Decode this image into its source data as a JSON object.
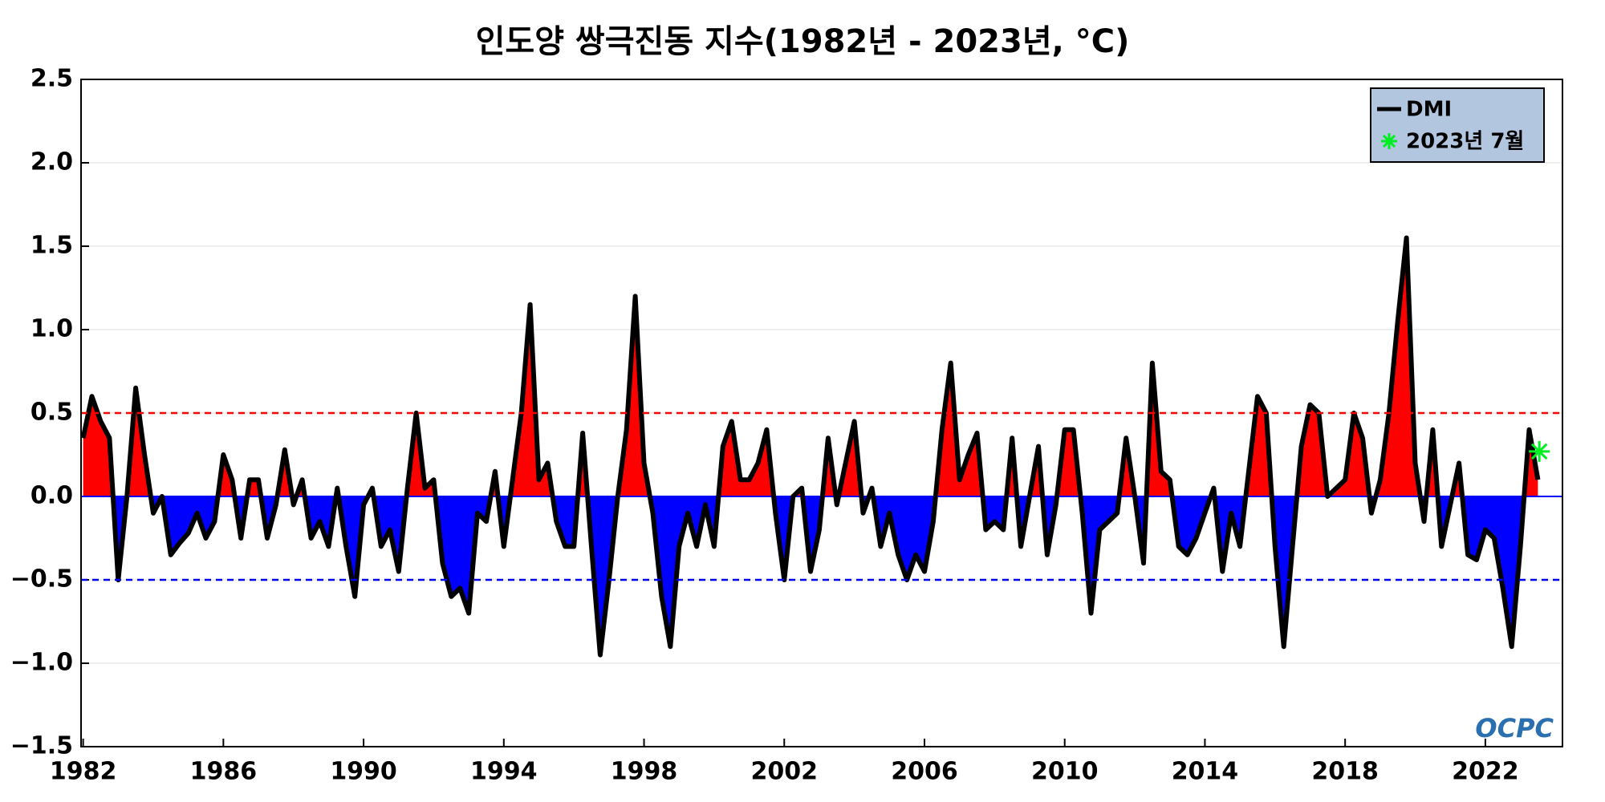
{
  "chart_data": {
    "type": "line",
    "title": "인도양 쌍극진동 지수(1982년 - 2023년, °C)",
    "x": [
      1982,
      1982.25,
      1982.5,
      1982.75,
      1983,
      1983.25,
      1983.5,
      1983.75,
      1984,
      1984.25,
      1984.5,
      1984.75,
      1985,
      1985.25,
      1985.5,
      1985.75,
      1986,
      1986.25,
      1986.5,
      1986.75,
      1987,
      1987.25,
      1987.5,
      1987.75,
      1988,
      1988.25,
      1988.5,
      1988.75,
      1989,
      1989.25,
      1989.5,
      1989.75,
      1990,
      1990.25,
      1990.5,
      1990.75,
      1991,
      1991.25,
      1991.5,
      1991.75,
      1992,
      1992.25,
      1992.5,
      1992.75,
      1993,
      1993.25,
      1993.5,
      1993.75,
      1994,
      1994.25,
      1994.5,
      1994.75,
      1995,
      1995.25,
      1995.5,
      1995.75,
      1996,
      1996.25,
      1996.5,
      1996.75,
      1997,
      1997.25,
      1997.5,
      1997.75,
      1998,
      1998.25,
      1998.5,
      1998.75,
      1999,
      1999.25,
      1999.5,
      1999.75,
      2000,
      2000.25,
      2000.5,
      2000.75,
      2001,
      2001.25,
      2001.5,
      2001.75,
      2002,
      2002.25,
      2002.5,
      2002.75,
      2003,
      2003.25,
      2003.5,
      2003.75,
      2004,
      2004.25,
      2004.5,
      2004.75,
      2005,
      2005.25,
      2005.5,
      2005.75,
      2006,
      2006.25,
      2006.5,
      2006.75,
      2007,
      2007.25,
      2007.5,
      2007.75,
      2008,
      2008.25,
      2008.5,
      2008.75,
      2009,
      2009.25,
      2009.5,
      2009.75,
      2010,
      2010.25,
      2010.5,
      2010.75,
      2011,
      2011.25,
      2011.5,
      2011.75,
      2012,
      2012.25,
      2012.5,
      2012.75,
      2013,
      2013.25,
      2013.5,
      2013.75,
      2014,
      2014.25,
      2014.5,
      2014.75,
      2015,
      2015.25,
      2015.5,
      2015.75,
      2016,
      2016.25,
      2016.5,
      2016.75,
      2017,
      2017.25,
      2017.5,
      2017.75,
      2018,
      2018.25,
      2018.5,
      2018.75,
      2019,
      2019.25,
      2019.5,
      2019.75,
      2020,
      2020.25,
      2020.5,
      2020.75,
      2021,
      2021.25,
      2021.5,
      2021.75,
      2022,
      2022.25,
      2022.5,
      2022.75,
      2023,
      2023.25,
      2023.5
    ],
    "series": [
      {
        "name": "DMI",
        "color": "#000000",
        "values": [
          0.35,
          0.6,
          0.45,
          0.35,
          -0.5,
          0.0,
          0.65,
          0.25,
          -0.1,
          0.0,
          -0.35,
          -0.28,
          -0.22,
          -0.1,
          -0.25,
          -0.15,
          0.25,
          0.1,
          -0.25,
          0.1,
          0.1,
          -0.25,
          -0.05,
          0.28,
          -0.05,
          0.1,
          -0.25,
          -0.15,
          -0.3,
          0.05,
          -0.3,
          -0.6,
          -0.05,
          0.05,
          -0.3,
          -0.2,
          -0.45,
          0.05,
          0.5,
          0.05,
          0.1,
          -0.4,
          -0.6,
          -0.55,
          -0.7,
          -0.1,
          -0.15,
          0.15,
          -0.3,
          0.1,
          0.5,
          1.15,
          0.1,
          0.2,
          -0.15,
          -0.3,
          -0.3,
          0.38,
          -0.3,
          -0.95,
          -0.5,
          0.0,
          0.4,
          1.2,
          0.2,
          -0.1,
          -0.6,
          -0.9,
          -0.3,
          -0.1,
          -0.3,
          -0.05,
          -0.3,
          0.3,
          0.45,
          0.1,
          0.1,
          0.2,
          0.4,
          -0.1,
          -0.5,
          0.0,
          0.05,
          -0.45,
          -0.2,
          0.35,
          -0.05,
          0.2,
          0.45,
          -0.1,
          0.05,
          -0.3,
          -0.1,
          -0.35,
          -0.5,
          -0.35,
          -0.45,
          -0.15,
          0.4,
          0.8,
          0.1,
          0.25,
          0.38,
          -0.2,
          -0.15,
          -0.2,
          0.35,
          -0.3,
          0.0,
          0.3,
          -0.35,
          -0.05,
          0.4,
          0.4,
          -0.1,
          -0.7,
          -0.2,
          -0.15,
          -0.1,
          0.35,
          0.0,
          -0.4,
          0.8,
          0.15,
          0.1,
          -0.3,
          -0.35,
          -0.25,
          -0.1,
          0.05,
          -0.45,
          -0.1,
          -0.3,
          0.15,
          0.6,
          0.5,
          -0.3,
          -0.9,
          -0.3,
          0.3,
          0.55,
          0.5,
          0.0,
          0.05,
          0.1,
          0.5,
          0.35,
          -0.1,
          0.1,
          0.5,
          1.05,
          1.55,
          0.2,
          -0.15,
          0.4,
          -0.3,
          -0.05,
          0.2,
          -0.35,
          -0.38,
          -0.2,
          -0.25,
          -0.55,
          -0.9,
          -0.3,
          0.4,
          0.1
        ]
      }
    ],
    "positive_color": "#ff0000",
    "negative_color": "#0000ff",
    "marker": {
      "name": "2023년 7월",
      "color": "#00ee22",
      "x": 2023.54,
      "value": 0.27
    },
    "thresholds": [
      {
        "value": 0.5,
        "color": "#ff0000"
      },
      {
        "value": -0.5,
        "color": "#0000ff"
      }
    ],
    "xlim": [
      1981.94,
      2024.2
    ],
    "ylim": [
      -1.5,
      2.5
    ],
    "xticks": [
      1982,
      1986,
      1990,
      1994,
      1998,
      2002,
      2006,
      2010,
      2014,
      2018,
      2022
    ],
    "yticks": [
      {
        "value": -1.5,
        "label": "−1.5"
      },
      {
        "value": -1,
        "label": "−1.0"
      },
      {
        "value": -0.5,
        "label": "−0.5"
      },
      {
        "value": 0,
        "label": "0.0"
      },
      0.5,
      {
        "value": 1,
        "label": "1.0"
      },
      1.5,
      {
        "value": 2,
        "label": "2.0"
      },
      2.5
    ],
    "grid": true,
    "legend": "upper right",
    "logo": "OCPC"
  }
}
